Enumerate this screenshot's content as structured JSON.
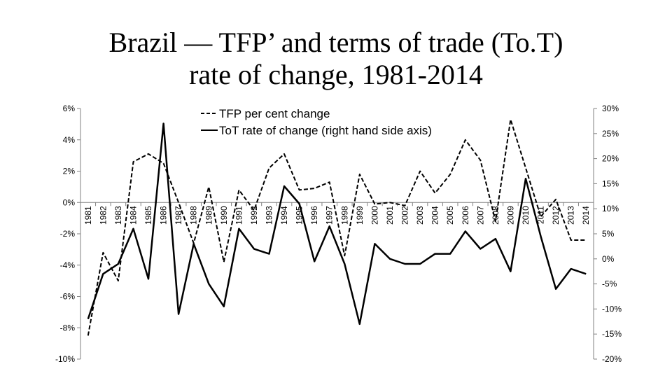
{
  "title": {
    "line1": "Brazil — TFP’ and terms of trade (To.T)",
    "line2": "rate of change, 1981-2014"
  },
  "chart_data": {
    "type": "line",
    "title": "Brazil — TFP’ and terms of trade (To.T) rate of change, 1981-2014",
    "x": [
      "1981",
      "1982",
      "1983",
      "1984",
      "1985",
      "1986",
      "1987",
      "1988",
      "1989",
      "1990",
      "1991",
      "1992",
      "1993",
      "1994",
      "1995",
      "1996",
      "1997",
      "1998",
      "1999",
      "2000",
      "2001",
      "2002",
      "2003",
      "2004",
      "2005",
      "2006",
      "2007",
      "2008",
      "2009",
      "2010",
      "2011",
      "2012",
      "2013",
      "2014"
    ],
    "y_left": {
      "ticks": [
        "6%",
        "4%",
        "2%",
        "0%",
        "-2%",
        "-4%",
        "-6%",
        "-8%",
        "-10%"
      ],
      "ylim": [
        -10,
        6
      ]
    },
    "y_right": {
      "ticks": [
        "30%",
        "25%",
        "20%",
        "15%",
        "10%",
        "5%",
        "0%",
        "-5%",
        "-10%",
        "-15%",
        "-20%"
      ],
      "ylim": [
        -20,
        30
      ]
    },
    "series": [
      {
        "name": "TFP per cent change",
        "axis": "left",
        "style": "dashed",
        "values": [
          -8.5,
          -3.2,
          -5.0,
          2.6,
          3.1,
          2.5,
          0.0,
          -2.6,
          1.0,
          -3.8,
          0.8,
          -0.5,
          2.2,
          3.1,
          0.8,
          0.9,
          1.3,
          -3.4,
          1.8,
          -0.1,
          0.0,
          -0.2,
          2.0,
          0.6,
          1.8,
          4.0,
          2.7,
          -1.2,
          5.3,
          2.2,
          -0.9,
          0.2,
          -2.4,
          -2.4
        ]
      },
      {
        "name": "ToT rate of change (right hand side axis)",
        "axis": "right",
        "style": "solid",
        "values": [
          -12,
          -3,
          -1,
          6,
          -4,
          27,
          -11,
          3,
          -5,
          -9.5,
          6,
          2,
          1,
          14.5,
          11,
          -0.5,
          6.5,
          -1,
          -13,
          3,
          0,
          -1,
          -1,
          1,
          1,
          5.5,
          2,
          4,
          -2.5,
          16,
          4.5,
          -6,
          -2,
          -3
        ]
      }
    ],
    "legend": "top-center",
    "grid": false
  }
}
